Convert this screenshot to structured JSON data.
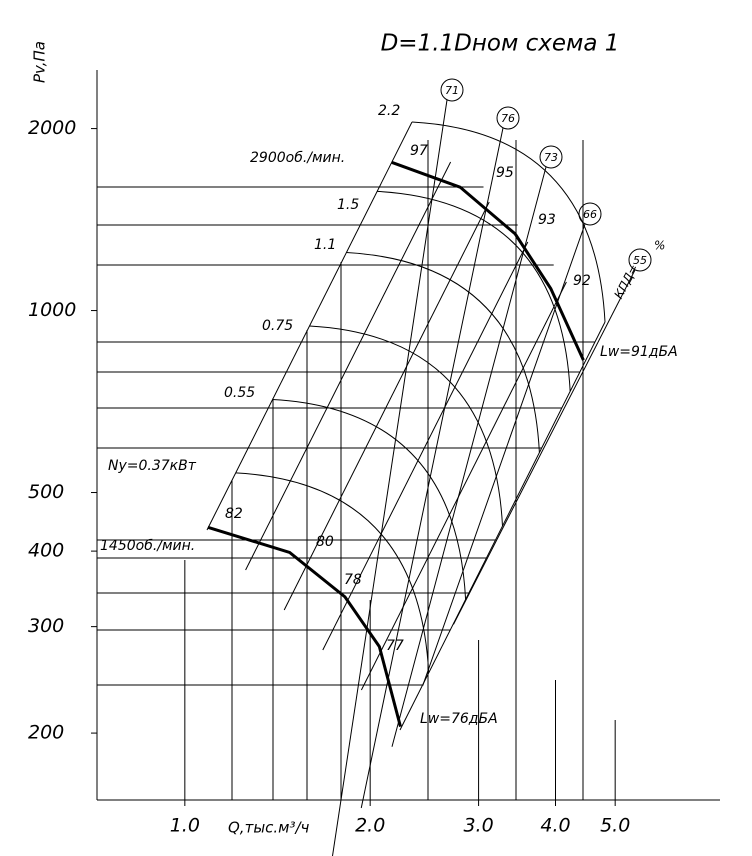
{
  "chart_data": {
    "type": "line",
    "title": "D=1.1Dном  схема 1",
    "x_label": "Q,тыс.м³/ч",
    "y_label": "Pv,Па",
    "log_x": true,
    "log_y": true,
    "xlim": [
      0.72,
      7.4
    ],
    "ylim": [
      155,
      2500
    ],
    "xticks": [
      {
        "value": 1,
        "label": "1.0"
      },
      {
        "value": 2,
        "label": "2.0"
      },
      {
        "value": 3,
        "label": "3.0"
      },
      {
        "value": 4,
        "label": "4.0"
      },
      {
        "value": 5,
        "label": "5.0"
      }
    ],
    "yticks": [
      200,
      300,
      400,
      500,
      1000,
      2000
    ],
    "series": [
      {
        "name": "2900об./мин.",
        "color": "#000000",
        "x": [
          2.17,
          2.8,
          3.44,
          3.93,
          4.44
        ],
        "values": [
          1758,
          1600,
          1339,
          1087,
          828
        ]
      },
      {
        "name": "1450об./мин.",
        "color": "#000000",
        "x": [
          1.09,
          1.48,
          1.82,
          2.07,
          2.24
        ],
        "values": [
          438,
          398,
          336,
          278,
          205
        ]
      }
    ],
    "annotations": [
      "2.2",
      "1.5",
      "1.1",
      "0.75",
      "0.55",
      "Ny=0.37кВт",
      "97",
      "95",
      "93",
      "92",
      "82",
      "80",
      "78",
      "77",
      "Lw=91дБА",
      "Lw=76дБА",
      "71",
      "76",
      "73",
      "66",
      "55",
      "КПД=",
      "%"
    ]
  }
}
